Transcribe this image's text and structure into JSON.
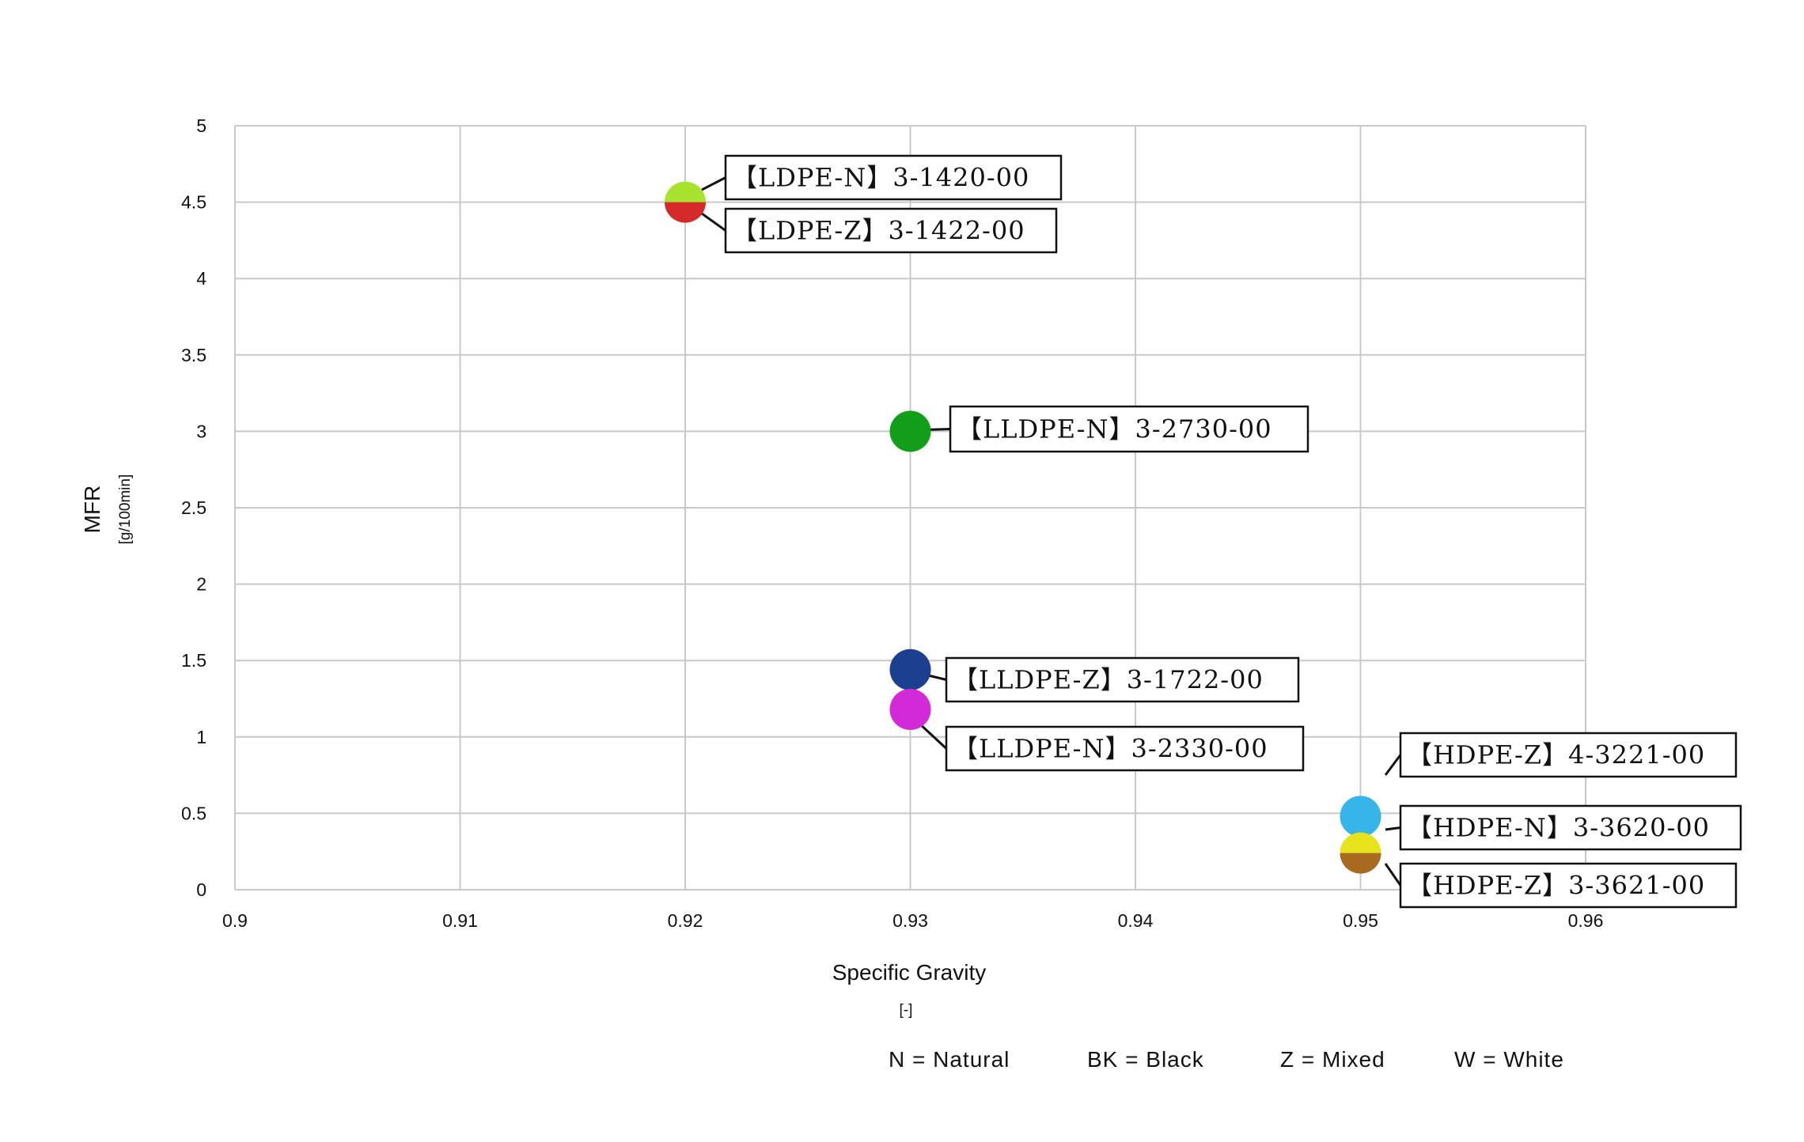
{
  "chart_data": {
    "type": "scatter",
    "xlabel": "Specific Gravity",
    "xunit": "[-]",
    "ylabel": "MFR",
    "yunit": "[g/100min]",
    "xlim": [
      0.9,
      0.96
    ],
    "ylim": [
      0,
      5
    ],
    "xticks": [
      "0.9",
      "0.91",
      "0.92",
      "0.93",
      "0.94",
      "0.95",
      "0.96"
    ],
    "yticks": [
      "0",
      "0.5",
      "1",
      "1.5",
      "2",
      "2.5",
      "3",
      "3.5",
      "4",
      "4.5",
      "5"
    ],
    "grid": true,
    "points": [
      {
        "label": "【LDPE-N】3-1420-00",
        "x": 0.92,
        "y": 4.5,
        "color": "#a6e22e",
        "half": "top"
      },
      {
        "label": "【LDPE-Z】3-1422-00",
        "x": 0.92,
        "y": 4.5,
        "color": "#d42a2a",
        "half": "bottom"
      },
      {
        "label": "【LLDPE-N】3-2730-00",
        "x": 0.93,
        "y": 3.0,
        "color": "#139e1a",
        "half": "full"
      },
      {
        "label": "【LLDPE-Z】3-1722-00",
        "x": 0.93,
        "y": 1.44,
        "color": "#1c3f8f",
        "half": "full"
      },
      {
        "label": "【LLDPE-N】3-2330-00",
        "x": 0.93,
        "y": 1.18,
        "color": "#d12ad6",
        "half": "full"
      },
      {
        "label": "【HDPE-Z】4-3221-00",
        "x": 0.95,
        "y": 0.48,
        "color": "#36b6e8",
        "half": "full"
      },
      {
        "label": "【HDPE-N】3-3620-00",
        "x": 0.95,
        "y": 0.24,
        "color": "#e6e21c",
        "half": "top"
      },
      {
        "label": "【HDPE-Z】3-3621-00",
        "x": 0.95,
        "y": 0.24,
        "color": "#a86a1e",
        "half": "bottom"
      }
    ],
    "legend": [
      "N = Natural",
      "BK = Black",
      "Z = Mixed",
      "W = White"
    ]
  }
}
